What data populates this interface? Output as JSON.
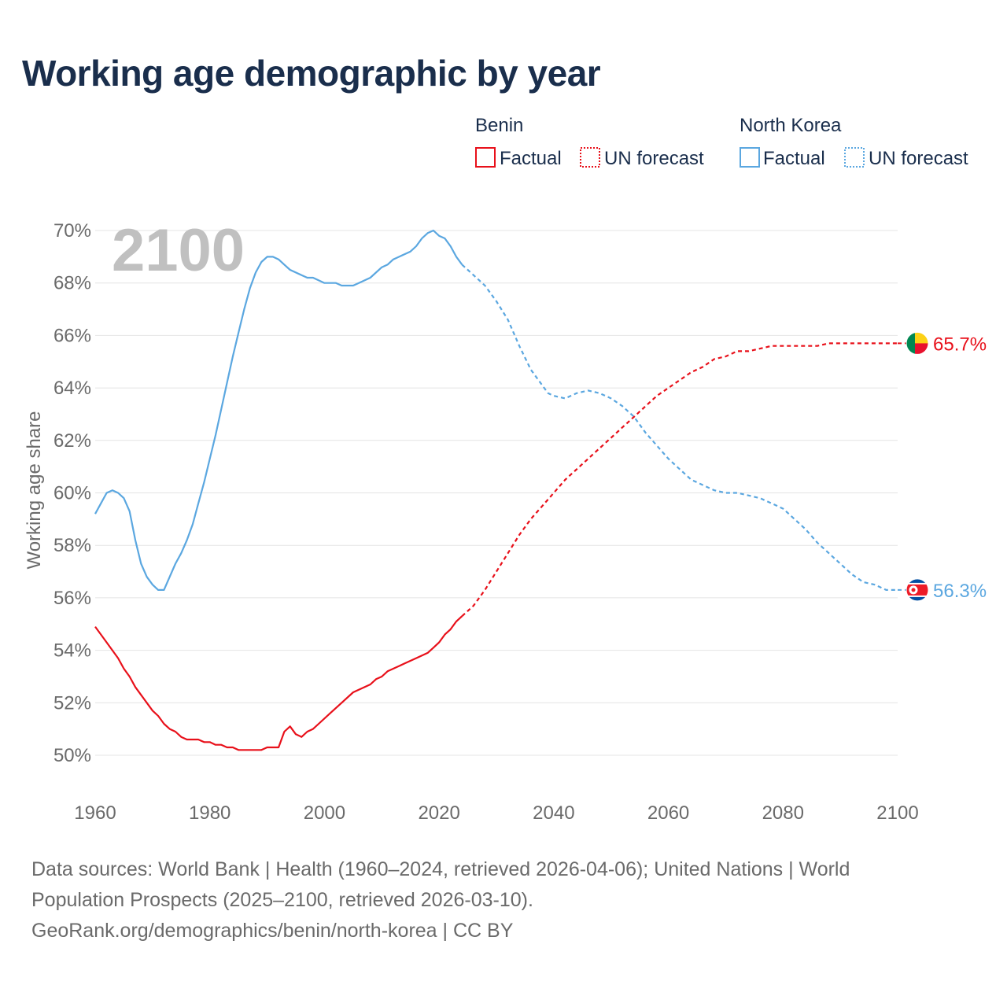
{
  "title": "Working age demographic by year",
  "year_watermark": "2100",
  "legend": {
    "groups": [
      {
        "name": "Benin",
        "factual_label": "Factual",
        "forecast_label": "UN forecast",
        "color": "#e8101a"
      },
      {
        "name": "North Korea",
        "factual_label": "Factual",
        "forecast_label": "UN forecast",
        "color": "#5ba7e0"
      }
    ]
  },
  "footer": {
    "line1": "Data sources: World Bank | Health (1960–2024, retrieved 2026-04-06); United Nations | World",
    "line2": "Population Prospects (2025–2100, retrieved 2026-03-10).",
    "line3": "GeoRank.org/demographics/benin/north-korea | CC BY"
  },
  "chart_data": {
    "type": "line",
    "title": "Working age demographic by year",
    "xlabel": "",
    "ylabel": "Working age share",
    "xlim": [
      1960,
      2100
    ],
    "ylim": [
      50,
      70
    ],
    "x_ticks": [
      1960,
      1980,
      2000,
      2020,
      2040,
      2060,
      2080,
      2100
    ],
    "y_ticks": [
      50,
      52,
      54,
      56,
      58,
      60,
      62,
      64,
      66,
      68,
      70
    ],
    "y_tick_labels": [
      "50%",
      "52%",
      "54%",
      "56%",
      "58%",
      "60%",
      "62%",
      "64%",
      "66%",
      "68%",
      "70%"
    ],
    "x_tick_labels": [
      "1960",
      "1980",
      "2000",
      "2020",
      "2040",
      "2060",
      "2080",
      "2100"
    ],
    "grid": true,
    "factual_end_year": 2024,
    "series": [
      {
        "name": "Benin",
        "color": "#e8101a",
        "end_label": "65.7%",
        "points": [
          [
            1960,
            54.9
          ],
          [
            1962,
            54.3
          ],
          [
            1964,
            53.7
          ],
          [
            1965,
            53.3
          ],
          [
            1966,
            53.0
          ],
          [
            1967,
            52.6
          ],
          [
            1968,
            52.3
          ],
          [
            1969,
            52.0
          ],
          [
            1970,
            51.7
          ],
          [
            1971,
            51.5
          ],
          [
            1972,
            51.2
          ],
          [
            1973,
            51.0
          ],
          [
            1974,
            50.9
          ],
          [
            1975,
            50.7
          ],
          [
            1976,
            50.6
          ],
          [
            1978,
            50.6
          ],
          [
            1979,
            50.5
          ],
          [
            1980,
            50.5
          ],
          [
            1981,
            50.4
          ],
          [
            1982,
            50.4
          ],
          [
            1983,
            50.3
          ],
          [
            1984,
            50.3
          ],
          [
            1985,
            50.2
          ],
          [
            1989,
            50.2
          ],
          [
            1990,
            50.3
          ],
          [
            1992,
            50.3
          ],
          [
            1993,
            50.9
          ],
          [
            1994,
            51.1
          ],
          [
            1995,
            50.8
          ],
          [
            1996,
            50.7
          ],
          [
            1997,
            50.9
          ],
          [
            1998,
            51.0
          ],
          [
            1999,
            51.2
          ],
          [
            2001,
            51.6
          ],
          [
            2003,
            52.0
          ],
          [
            2005,
            52.4
          ],
          [
            2008,
            52.7
          ],
          [
            2009,
            52.9
          ],
          [
            2010,
            53.0
          ],
          [
            2011,
            53.2
          ],
          [
            2014,
            53.5
          ],
          [
            2016,
            53.7
          ],
          [
            2018,
            53.9
          ],
          [
            2019,
            54.1
          ],
          [
            2020,
            54.3
          ],
          [
            2021,
            54.6
          ],
          [
            2022,
            54.8
          ],
          [
            2023,
            55.1
          ],
          [
            2024,
            55.3
          ],
          [
            2026,
            55.7
          ],
          [
            2028,
            56.3
          ],
          [
            2030,
            57.0
          ],
          [
            2032,
            57.7
          ],
          [
            2034,
            58.4
          ],
          [
            2036,
            59.0
          ],
          [
            2038,
            59.5
          ],
          [
            2040,
            60.0
          ],
          [
            2042,
            60.5
          ],
          [
            2044,
            60.9
          ],
          [
            2046,
            61.3
          ],
          [
            2048,
            61.7
          ],
          [
            2050,
            62.1
          ],
          [
            2052,
            62.5
          ],
          [
            2054,
            62.9
          ],
          [
            2056,
            63.3
          ],
          [
            2058,
            63.7
          ],
          [
            2060,
            64.0
          ],
          [
            2062,
            64.3
          ],
          [
            2064,
            64.6
          ],
          [
            2066,
            64.8
          ],
          [
            2068,
            65.1
          ],
          [
            2070,
            65.2
          ],
          [
            2072,
            65.4
          ],
          [
            2074,
            65.4
          ],
          [
            2076,
            65.5
          ],
          [
            2078,
            65.6
          ],
          [
            2086,
            65.6
          ],
          [
            2088,
            65.7
          ],
          [
            2100,
            65.7
          ]
        ]
      },
      {
        "name": "North Korea",
        "color": "#5ba7e0",
        "end_label": "56.3%",
        "points": [
          [
            1960,
            59.2
          ],
          [
            1961,
            59.6
          ],
          [
            1962,
            60.0
          ],
          [
            1963,
            60.1
          ],
          [
            1964,
            60.0
          ],
          [
            1965,
            59.8
          ],
          [
            1966,
            59.3
          ],
          [
            1967,
            58.2
          ],
          [
            1968,
            57.3
          ],
          [
            1969,
            56.8
          ],
          [
            1970,
            56.5
          ],
          [
            1971,
            56.3
          ],
          [
            1972,
            56.3
          ],
          [
            1973,
            56.8
          ],
          [
            1974,
            57.3
          ],
          [
            1975,
            57.7
          ],
          [
            1976,
            58.2
          ],
          [
            1977,
            58.8
          ],
          [
            1978,
            59.6
          ],
          [
            1979,
            60.4
          ],
          [
            1980,
            61.3
          ],
          [
            1981,
            62.2
          ],
          [
            1982,
            63.2
          ],
          [
            1983,
            64.2
          ],
          [
            1984,
            65.2
          ],
          [
            1985,
            66.1
          ],
          [
            1986,
            67.0
          ],
          [
            1987,
            67.8
          ],
          [
            1988,
            68.4
          ],
          [
            1989,
            68.8
          ],
          [
            1990,
            69.0
          ],
          [
            1991,
            69.0
          ],
          [
            1992,
            68.9
          ],
          [
            1993,
            68.7
          ],
          [
            1994,
            68.5
          ],
          [
            1996,
            68.3
          ],
          [
            1997,
            68.2
          ],
          [
            1998,
            68.2
          ],
          [
            2000,
            68.0
          ],
          [
            2002,
            68.0
          ],
          [
            2003,
            67.9
          ],
          [
            2005,
            67.9
          ],
          [
            2006,
            68.0
          ],
          [
            2008,
            68.2
          ],
          [
            2010,
            68.6
          ],
          [
            2011,
            68.7
          ],
          [
            2012,
            68.9
          ],
          [
            2015,
            69.2
          ],
          [
            2016,
            69.4
          ],
          [
            2017,
            69.7
          ],
          [
            2018,
            69.9
          ],
          [
            2019,
            70.0
          ],
          [
            2020,
            69.8
          ],
          [
            2021,
            69.7
          ],
          [
            2022,
            69.4
          ],
          [
            2023,
            69.0
          ],
          [
            2024,
            68.7
          ],
          [
            2026,
            68.3
          ],
          [
            2028,
            67.9
          ],
          [
            2030,
            67.3
          ],
          [
            2032,
            66.6
          ],
          [
            2034,
            65.6
          ],
          [
            2036,
            64.7
          ],
          [
            2038,
            64.1
          ],
          [
            2039,
            63.8
          ],
          [
            2040,
            63.7
          ],
          [
            2042,
            63.6
          ],
          [
            2044,
            63.8
          ],
          [
            2046,
            63.9
          ],
          [
            2048,
            63.8
          ],
          [
            2050,
            63.6
          ],
          [
            2052,
            63.3
          ],
          [
            2054,
            62.9
          ],
          [
            2056,
            62.3
          ],
          [
            2058,
            61.8
          ],
          [
            2060,
            61.3
          ],
          [
            2062,
            60.9
          ],
          [
            2064,
            60.5
          ],
          [
            2066,
            60.3
          ],
          [
            2068,
            60.1
          ],
          [
            2070,
            60.0
          ],
          [
            2072,
            60.0
          ],
          [
            2074,
            59.9
          ],
          [
            2076,
            59.8
          ],
          [
            2078,
            59.6
          ],
          [
            2080,
            59.4
          ],
          [
            2082,
            59.0
          ],
          [
            2084,
            58.6
          ],
          [
            2086,
            58.1
          ],
          [
            2088,
            57.7
          ],
          [
            2090,
            57.3
          ],
          [
            2092,
            56.9
          ],
          [
            2094,
            56.6
          ],
          [
            2096,
            56.5
          ],
          [
            2098,
            56.3
          ],
          [
            2100,
            56.3
          ]
        ]
      }
    ]
  }
}
